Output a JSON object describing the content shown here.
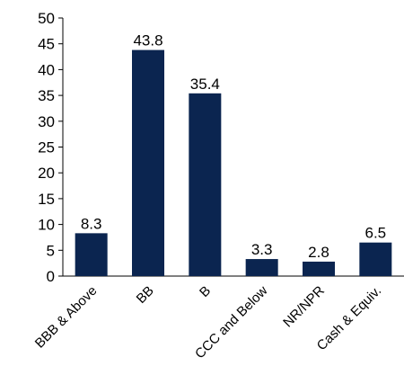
{
  "chart_data": {
    "type": "bar",
    "title": "",
    "xlabel": "",
    "ylabel": "",
    "categories": [
      "BBB & Above",
      "BB",
      "B",
      "CCC and Below",
      "NR/NPR",
      "Cash & Equiv."
    ],
    "values": [
      8.3,
      43.8,
      35.4,
      3.3,
      2.8,
      6.5
    ],
    "data_labels": [
      "8.3",
      "43.8",
      "35.4",
      "3.3",
      "2.8",
      "6.5"
    ],
    "ylim": [
      0,
      50
    ],
    "y_ticks": [
      0,
      5,
      10,
      15,
      20,
      25,
      30,
      35,
      40,
      45,
      50
    ],
    "grid": false,
    "legend": "none",
    "bar_color": "#0b2550"
  }
}
